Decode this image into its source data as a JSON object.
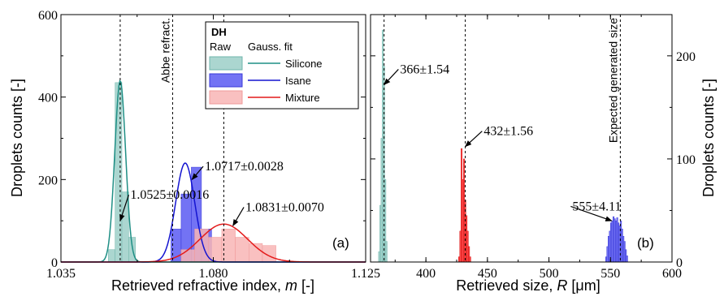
{
  "chart_data": [
    {
      "type": "bar",
      "panel_label": "(a)",
      "xlabel_text": "Retrieved refractive index, ",
      "xlabel_var": "m",
      "xlabel_unit": " [-]",
      "ylabel": "Droplets counts [-]",
      "xlim": [
        1.035,
        1.125
      ],
      "ylim": [
        0,
        600
      ],
      "xticks": [
        "1.035",
        "1.080",
        "1.125"
      ],
      "yticks": [
        "0",
        "200",
        "400",
        "600"
      ],
      "vlines": [
        {
          "x": 1.0525
        },
        {
          "x": 1.068,
          "label": "Abbe refract."
        },
        {
          "x": 1.0831
        }
      ],
      "legend": {
        "title": "DH",
        "col_raw": "Raw",
        "col_fit": "Gauss. fit",
        "entries": [
          "Silicone",
          "Isane",
          "Mixture"
        ]
      },
      "series": [
        {
          "name": "Silicone",
          "color": "#9ccfc8",
          "edge": "#6fb5ab",
          "line": "#1f8f85",
          "bins": [
            [
              1.049,
              1.051,
              30
            ],
            [
              1.051,
              1.053,
              435
            ],
            [
              1.053,
              1.055,
              170
            ],
            [
              1.055,
              1.057,
              60
            ]
          ],
          "fit": {
            "mu": 1.0525,
            "sigma": 0.0016,
            "amp": 440
          }
        },
        {
          "name": "Isane",
          "color": "#5b5bf2",
          "edge": "#3a3ad8",
          "line": "#1414d0",
          "bins": [
            [
              1.0675,
              1.0705,
              80
            ],
            [
              1.0705,
              1.0735,
              165
            ],
            [
              1.0735,
              1.0765,
              230
            ],
            [
              1.0765,
              1.0795,
              80
            ]
          ],
          "fit": {
            "mu": 1.0717,
            "sigma": 0.0028,
            "amp": 240
          }
        },
        {
          "name": "Mixture",
          "color": "#f8b5b5",
          "edge": "#f09a9a",
          "line": "#e41a1a",
          "bins": [
            [
              1.0705,
              1.0745,
              30
            ],
            [
              1.0745,
              1.0785,
              80
            ],
            [
              1.0785,
              1.0825,
              60
            ],
            [
              1.0825,
              1.0865,
              80
            ],
            [
              1.0865,
              1.0905,
              60
            ],
            [
              1.0905,
              1.0945,
              45
            ],
            [
              1.0945,
              1.0985,
              40
            ]
          ],
          "fit": {
            "mu": 1.0831,
            "sigma": 0.007,
            "amp": 92
          }
        }
      ],
      "annotations": [
        {
          "text": "1.0525±0.0016",
          "tx": 1.0555,
          "ty": 153,
          "ax": 1.0525,
          "ay": 100
        },
        {
          "text": "1.0717±0.0028",
          "tx": 1.0775,
          "ty": 222,
          "ax": 1.0737,
          "ay": 200
        },
        {
          "text": "1.0831±0.0070",
          "tx": 1.0895,
          "ty": 123,
          "ax": 1.0858,
          "ay": 88
        }
      ]
    },
    {
      "type": "bar",
      "panel_label": "(b)",
      "xlabel_text": "Retrieved size, ",
      "xlabel_var": "R",
      "xlabel_unit": " [μm]",
      "ylabel": "Droplets counts [-]",
      "xlim": [
        355,
        600
      ],
      "ylim": [
        0,
        240
      ],
      "xticks": [
        "400",
        "450",
        "500",
        "550",
        "600"
      ],
      "yticks": [
        "0",
        "100",
        "200"
      ],
      "vlines": [
        {
          "x": 366
        },
        {
          "x": 432
        },
        {
          "x": 558,
          "label": "Expected generated size"
        }
      ],
      "series": [
        {
          "name": "Silicone",
          "color": "#9ccfc8",
          "edge": "#6fb5ab",
          "bins": [
            [
              361.5,
              362.5,
              10
            ],
            [
              362.5,
              363.5,
              55
            ],
            [
              363.5,
              364.5,
              120
            ],
            [
              364.5,
              365.5,
              225
            ],
            [
              365.5,
              366.5,
              190
            ],
            [
              366.5,
              367.5,
              80
            ],
            [
              367.5,
              368.5,
              20
            ]
          ]
        },
        {
          "name": "Isane",
          "color": "#5b5bf2",
          "edge": "#3a3ad8",
          "bins": [
            [
              546,
              547,
              5
            ],
            [
              547,
              548,
              15
            ],
            [
              548,
              549,
              25
            ],
            [
              549,
              550,
              30
            ],
            [
              550,
              551,
              38
            ],
            [
              551,
              552,
              40
            ],
            [
              552,
              553,
              44
            ],
            [
              553,
              554,
              42
            ],
            [
              554,
              555,
              40
            ],
            [
              555,
              556,
              43
            ],
            [
              556,
              557,
              38
            ],
            [
              557,
              558,
              35
            ],
            [
              558,
              559,
              40
            ],
            [
              559,
              560,
              32
            ],
            [
              560,
              561,
              25
            ],
            [
              561,
              562,
              20
            ],
            [
              562,
              563,
              12
            ],
            [
              563,
              564,
              6
            ]
          ]
        },
        {
          "name": "Mixture",
          "color": "#ff3030",
          "edge": "#d81010",
          "bins": [
            [
              426.5,
              427.5,
              5
            ],
            [
              427.5,
              428.5,
              30
            ],
            [
              428.5,
              429.5,
              110
            ],
            [
              429.5,
              430.5,
              80
            ],
            [
              430.5,
              431.5,
              100
            ],
            [
              431.5,
              432.5,
              60
            ],
            [
              432.5,
              433.5,
              45
            ],
            [
              433.5,
              434.5,
              30
            ],
            [
              434.5,
              435.5,
              15
            ],
            [
              435.5,
              436.5,
              5
            ]
          ]
        }
      ],
      "annotations": [
        {
          "text": "366±1.54",
          "tx": 379,
          "ty": 183,
          "ax": 366,
          "ay": 172
        },
        {
          "text": "432±1.56",
          "tx": 447,
          "ty": 123,
          "ax": 432,
          "ay": 112
        },
        {
          "text": "555±4.11",
          "tx": 519,
          "ty": 50,
          "ax": 551,
          "ay": 40
        }
      ]
    }
  ]
}
